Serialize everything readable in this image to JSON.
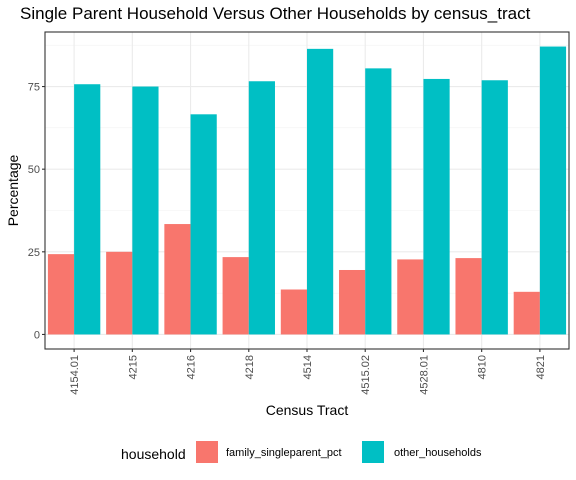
{
  "chart_data": {
    "type": "bar",
    "title": "Single Parent Household Versus Other Households by census_tract",
    "xlabel": "Census Tract",
    "ylabel": "Percentage",
    "categories": [
      "4154.01",
      "4215",
      "4216",
      "4218",
      "4514",
      "4515.02",
      "4528.01",
      "4810",
      "4821"
    ],
    "series": [
      {
        "name": "family_singleparent_pct",
        "color": "#F8766D",
        "values": [
          24.3,
          25.0,
          33.4,
          23.4,
          13.6,
          19.5,
          22.7,
          23.1,
          12.9
        ]
      },
      {
        "name": "other_households",
        "color": "#00BFC4",
        "values": [
          75.7,
          75.0,
          66.6,
          76.6,
          86.4,
          80.5,
          77.3,
          76.9,
          87.1
        ]
      }
    ],
    "ylim": [
      -4.4,
      91.5
    ],
    "yticks": [
      0,
      25,
      50,
      75
    ],
    "grid": true,
    "legend": {
      "title": "household",
      "position": "bottom"
    }
  }
}
